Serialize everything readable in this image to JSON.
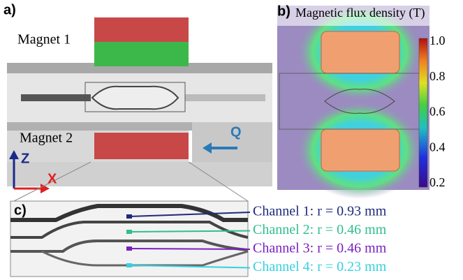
{
  "panels": {
    "a": {
      "label": "a)",
      "magnet_1": "Magnet 1",
      "magnet_2": "Magnet 2",
      "axis_z": "Z",
      "axis_x": "X",
      "flow": "Q"
    },
    "b": {
      "label": "b)",
      "title": "Magnetic flux density (T)",
      "colorbar_ticks": [
        "1.0",
        "0.8",
        "0.6",
        "0.4",
        "0.2"
      ]
    },
    "c": {
      "label": "c)",
      "channels": [
        {
          "label": "Channel 1: r = 0.93 mm",
          "color": "#1f2a7a"
        },
        {
          "label": "Channel 2: r = 0.46 mm",
          "color": "#2fbf8f"
        },
        {
          "label": "Channel 3: r = 0.46 mm",
          "color": "#7a1fc0"
        },
        {
          "label": "Channel 4: r = 0.23 mm",
          "color": "#36d0e0"
        }
      ]
    }
  }
}
